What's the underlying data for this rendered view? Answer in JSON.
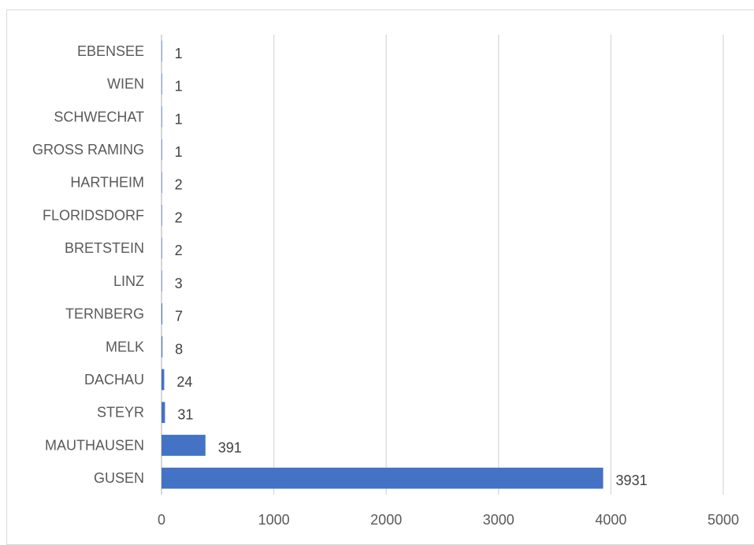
{
  "chart_data": {
    "type": "bar",
    "orientation": "horizontal",
    "categories": [
      "EBENSEE",
      "WIEN",
      "SCHWECHAT",
      "GROSS RAMING",
      "HARTHEIM",
      "FLORIDSDORF",
      "BRETSTEIN",
      "LINZ",
      "TERNBERG",
      "MELK",
      "DACHAU",
      "STEYR",
      "MAUTHAUSEN",
      "GUSEN"
    ],
    "values": [
      1,
      1,
      1,
      1,
      2,
      2,
      2,
      3,
      7,
      8,
      24,
      31,
      391,
      3931
    ],
    "data_labels": [
      "1",
      "1",
      "1",
      "1",
      "2",
      "2",
      "2",
      "3",
      "7",
      "8",
      "24",
      "31",
      "391",
      "3931"
    ],
    "xlim": [
      0,
      5000
    ],
    "x_ticks": [
      0,
      1000,
      2000,
      3000,
      4000,
      5000
    ],
    "x_tick_labels": [
      "0",
      "1000",
      "2000",
      "3000",
      "4000",
      "5000"
    ],
    "grid": "vertical",
    "legend": "none",
    "bar_color": "#4472c4",
    "grid_color": "#d9d9d9",
    "axis_color": "#bfbfbf"
  }
}
